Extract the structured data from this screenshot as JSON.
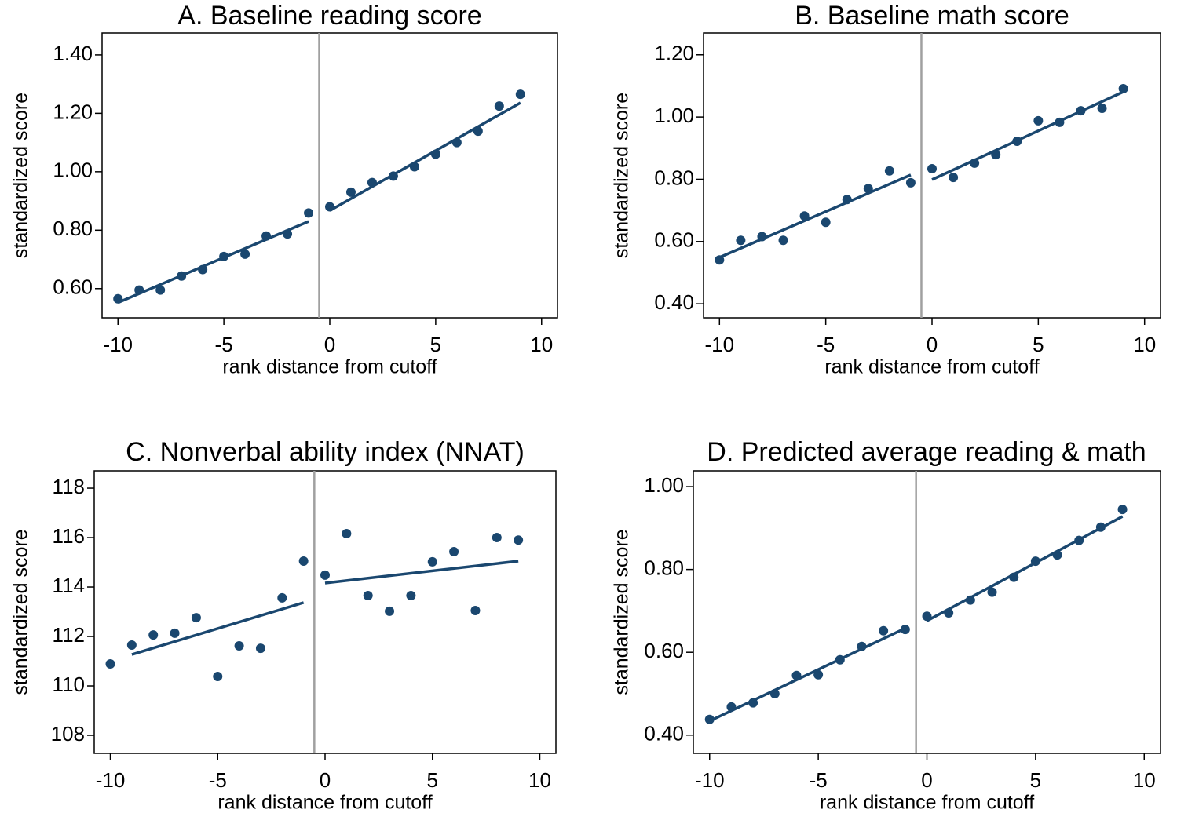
{
  "chart_data": [
    {
      "type": "scatter",
      "title": "A. Baseline reading score",
      "xlabel": "rank distance from cutoff",
      "ylabel": "standardized score",
      "color": "#1a476f",
      "vline": -0.5,
      "vline_color": "#a0a0a0",
      "xlim": [
        -10.75,
        10.75
      ],
      "ylim": [
        0.5,
        1.475
      ],
      "xticks": [
        -10,
        -5,
        0,
        5,
        10
      ],
      "yticks": [
        {
          "value": 0.6,
          "label": "0.60"
        },
        {
          "value": 0.8,
          "label": "0.80"
        },
        {
          "value": 1.0,
          "label": "1.00"
        },
        {
          "value": 1.2,
          "label": "1.20"
        },
        {
          "value": 1.4,
          "label": "1.40"
        }
      ],
      "points": {
        "x": [
          -10,
          -9,
          -8,
          -7,
          -6,
          -5,
          -4,
          -3,
          -2,
          -1,
          0,
          1,
          2,
          3,
          4,
          5,
          6,
          7,
          8,
          9
        ],
        "values": [
          0.565,
          0.595,
          0.595,
          0.643,
          0.665,
          0.71,
          0.718,
          0.78,
          0.787,
          0.859,
          0.88,
          0.93,
          0.963,
          0.985,
          1.017,
          1.06,
          1.1,
          1.139,
          1.225,
          1.265
        ]
      },
      "fits": [
        {
          "x": [
            -10,
            -1
          ],
          "values": [
            0.552,
            0.83
          ]
        },
        {
          "x": [
            0,
            9
          ],
          "values": [
            0.867,
            1.236
          ]
        }
      ]
    },
    {
      "type": "scatter",
      "title": "B. Baseline math score",
      "xlabel": "rank distance from cutoff",
      "ylabel": "standardized score",
      "color": "#1a476f",
      "vline": -0.5,
      "vline_color": "#a0a0a0",
      "xlim": [
        -10.75,
        10.75
      ],
      "ylim": [
        0.355,
        1.27
      ],
      "xticks": [
        -10,
        -5,
        0,
        5,
        10
      ],
      "yticks": [
        {
          "value": 0.4,
          "label": "0.40"
        },
        {
          "value": 0.6,
          "label": "0.60"
        },
        {
          "value": 0.8,
          "label": "0.80"
        },
        {
          "value": 1.0,
          "label": "1.00"
        },
        {
          "value": 1.2,
          "label": "1.20"
        }
      ],
      "points": {
        "x": [
          -10,
          -9,
          -8,
          -7,
          -6,
          -5,
          -4,
          -3,
          -2,
          -1,
          0,
          1,
          2,
          3,
          4,
          5,
          6,
          7,
          8,
          9
        ],
        "values": [
          0.541,
          0.604,
          0.616,
          0.604,
          0.682,
          0.662,
          0.735,
          0.77,
          0.827,
          0.789,
          0.834,
          0.806,
          0.852,
          0.879,
          0.922,
          0.988,
          0.983,
          1.02,
          1.028,
          1.091
        ]
      },
      "fits": [
        {
          "x": [
            -10,
            -1
          ],
          "values": [
            0.549,
            0.814
          ]
        },
        {
          "x": [
            0,
            9
          ],
          "values": [
            0.799,
            1.081
          ]
        }
      ]
    },
    {
      "type": "scatter",
      "title": "C. Nonverbal ability index (NNAT)",
      "xlabel": "rank distance from cutoff",
      "ylabel": "standardized score",
      "color": "#1a476f",
      "vline": -0.5,
      "vline_color": "#a0a0a0",
      "xlim": [
        -10.75,
        10.75
      ],
      "ylim": [
        107.27,
        118.7
      ],
      "xticks": [
        -10,
        -5,
        0,
        5,
        10
      ],
      "yticks": [
        108,
        110,
        112,
        114,
        116,
        118
      ],
      "points": {
        "x": [
          -10,
          -9,
          -8,
          -7,
          -6,
          -5,
          -4,
          -3,
          -2,
          -1,
          0,
          1,
          2,
          3,
          4,
          5,
          6,
          7,
          8,
          9
        ],
        "values": [
          110.89,
          111.65,
          112.06,
          112.13,
          112.76,
          110.38,
          111.62,
          111.52,
          113.56,
          115.05,
          114.48,
          116.16,
          113.65,
          113.02,
          113.65,
          115.02,
          115.43,
          113.05,
          116.0,
          115.9
        ]
      },
      "fits": [
        {
          "x": [
            -9,
            -1
          ],
          "values": [
            111.27,
            113.37
          ]
        },
        {
          "x": [
            0,
            9
          ],
          "values": [
            114.16,
            115.05
          ]
        }
      ]
    },
    {
      "type": "scatter",
      "title": "D. Predicted average reading & math",
      "xlabel": "rank distance from cutoff",
      "ylabel": "standardized score",
      "color": "#1a476f",
      "vline": -0.5,
      "vline_color": "#a0a0a0",
      "xlim": [
        -10.75,
        10.75
      ],
      "ylim": [
        0.356,
        1.038
      ],
      "xticks": [
        -10,
        -5,
        0,
        5,
        10
      ],
      "yticks": [
        {
          "value": 0.4,
          "label": "0.40"
        },
        {
          "value": 0.6,
          "label": "0.60"
        },
        {
          "value": 0.8,
          "label": "0.80"
        },
        {
          "value": 1.0,
          "label": "1.00"
        }
      ],
      "points": {
        "x": [
          -10,
          -9,
          -8,
          -7,
          -6,
          -5,
          -4,
          -3,
          -2,
          -1,
          0,
          1,
          2,
          3,
          4,
          5,
          6,
          7,
          8,
          9
        ],
        "values": [
          0.438,
          0.468,
          0.478,
          0.5,
          0.544,
          0.546,
          0.582,
          0.614,
          0.652,
          0.655,
          0.687,
          0.695,
          0.726,
          0.745,
          0.781,
          0.82,
          0.835,
          0.87,
          0.902,
          0.945
        ]
      },
      "fits": [
        {
          "x": [
            -10,
            -1
          ],
          "values": [
            0.434,
            0.658
          ]
        },
        {
          "x": [
            0,
            9
          ],
          "values": [
            0.676,
            0.928
          ]
        }
      ]
    }
  ]
}
